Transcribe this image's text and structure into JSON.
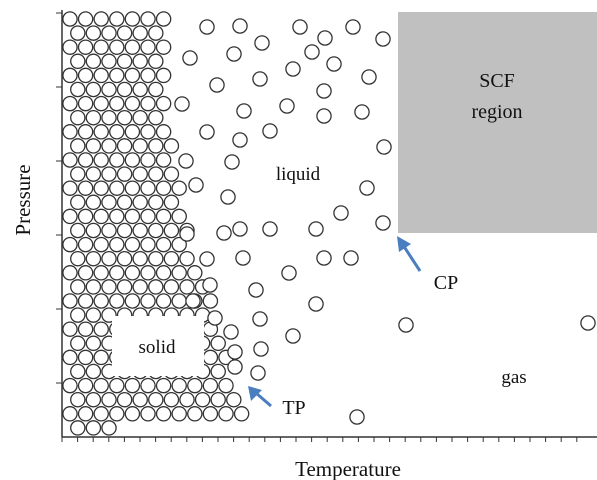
{
  "axes": {
    "x_label": "Temperature",
    "y_label": "Pressure"
  },
  "regions": {
    "scf_line1": "SCF",
    "scf_line2": "region",
    "liquid": "liquid",
    "solid": "solid",
    "gas": "gas"
  },
  "points": {
    "critical": "CP",
    "triple": "TP"
  },
  "colors": {
    "scf_fill": "#c0c0c0",
    "arrow": "#4a7ebf",
    "circle_stroke": "#333333",
    "axis": "#333333"
  }
}
